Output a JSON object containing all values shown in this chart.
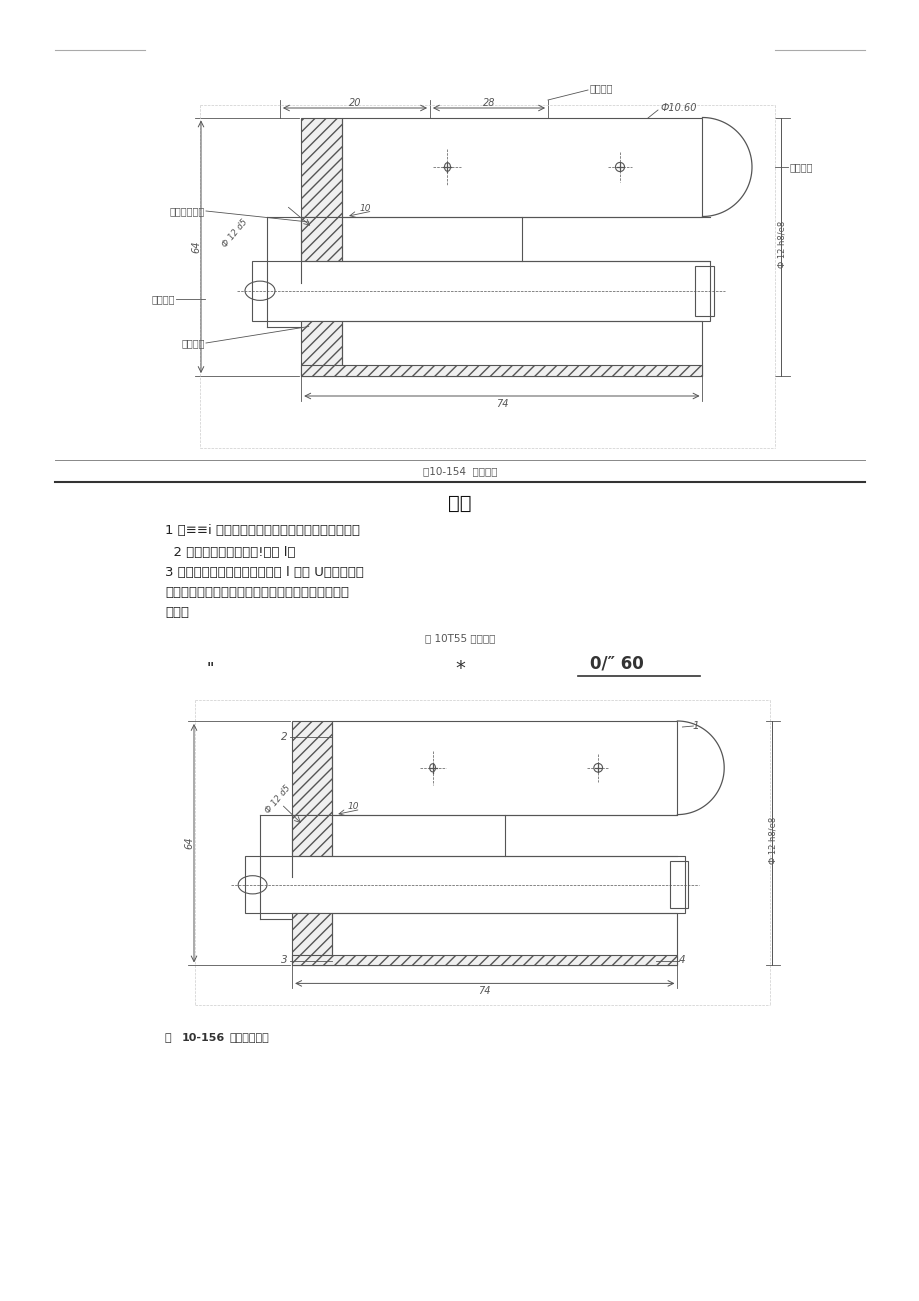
{
  "page_bg": "#ffffff",
  "page_width": 9.2,
  "page_height": 13.01,
  "fig1_caption": "图10-154  标注尺寸",
  "section_title": "要求",
  "req_lines": [
    "1 必≡≡i 十、工艺要求及本艇砸关标准进行装配。",
    "  2 各零、部的诉相对位!应御 l。",
    "3 都在堀口前必须豳晴轩净，羽 l 有球 U、飞边、氧",
    "化皮、锈蚀、切削、渊、灰尘和海亏并应符合相＾吉",
    "庭求。"
  ],
  "fig_caption2": "图 10T55 技术要求",
  "fig2_header_left": "\"",
  "fig2_header_star": "*",
  "fig2_header_right": "0/″ 60",
  "fig2_caption": "图 10-156 设置零件序号",
  "lc": "#555555",
  "dc": "#555555",
  "hatch_lc": "#888888"
}
